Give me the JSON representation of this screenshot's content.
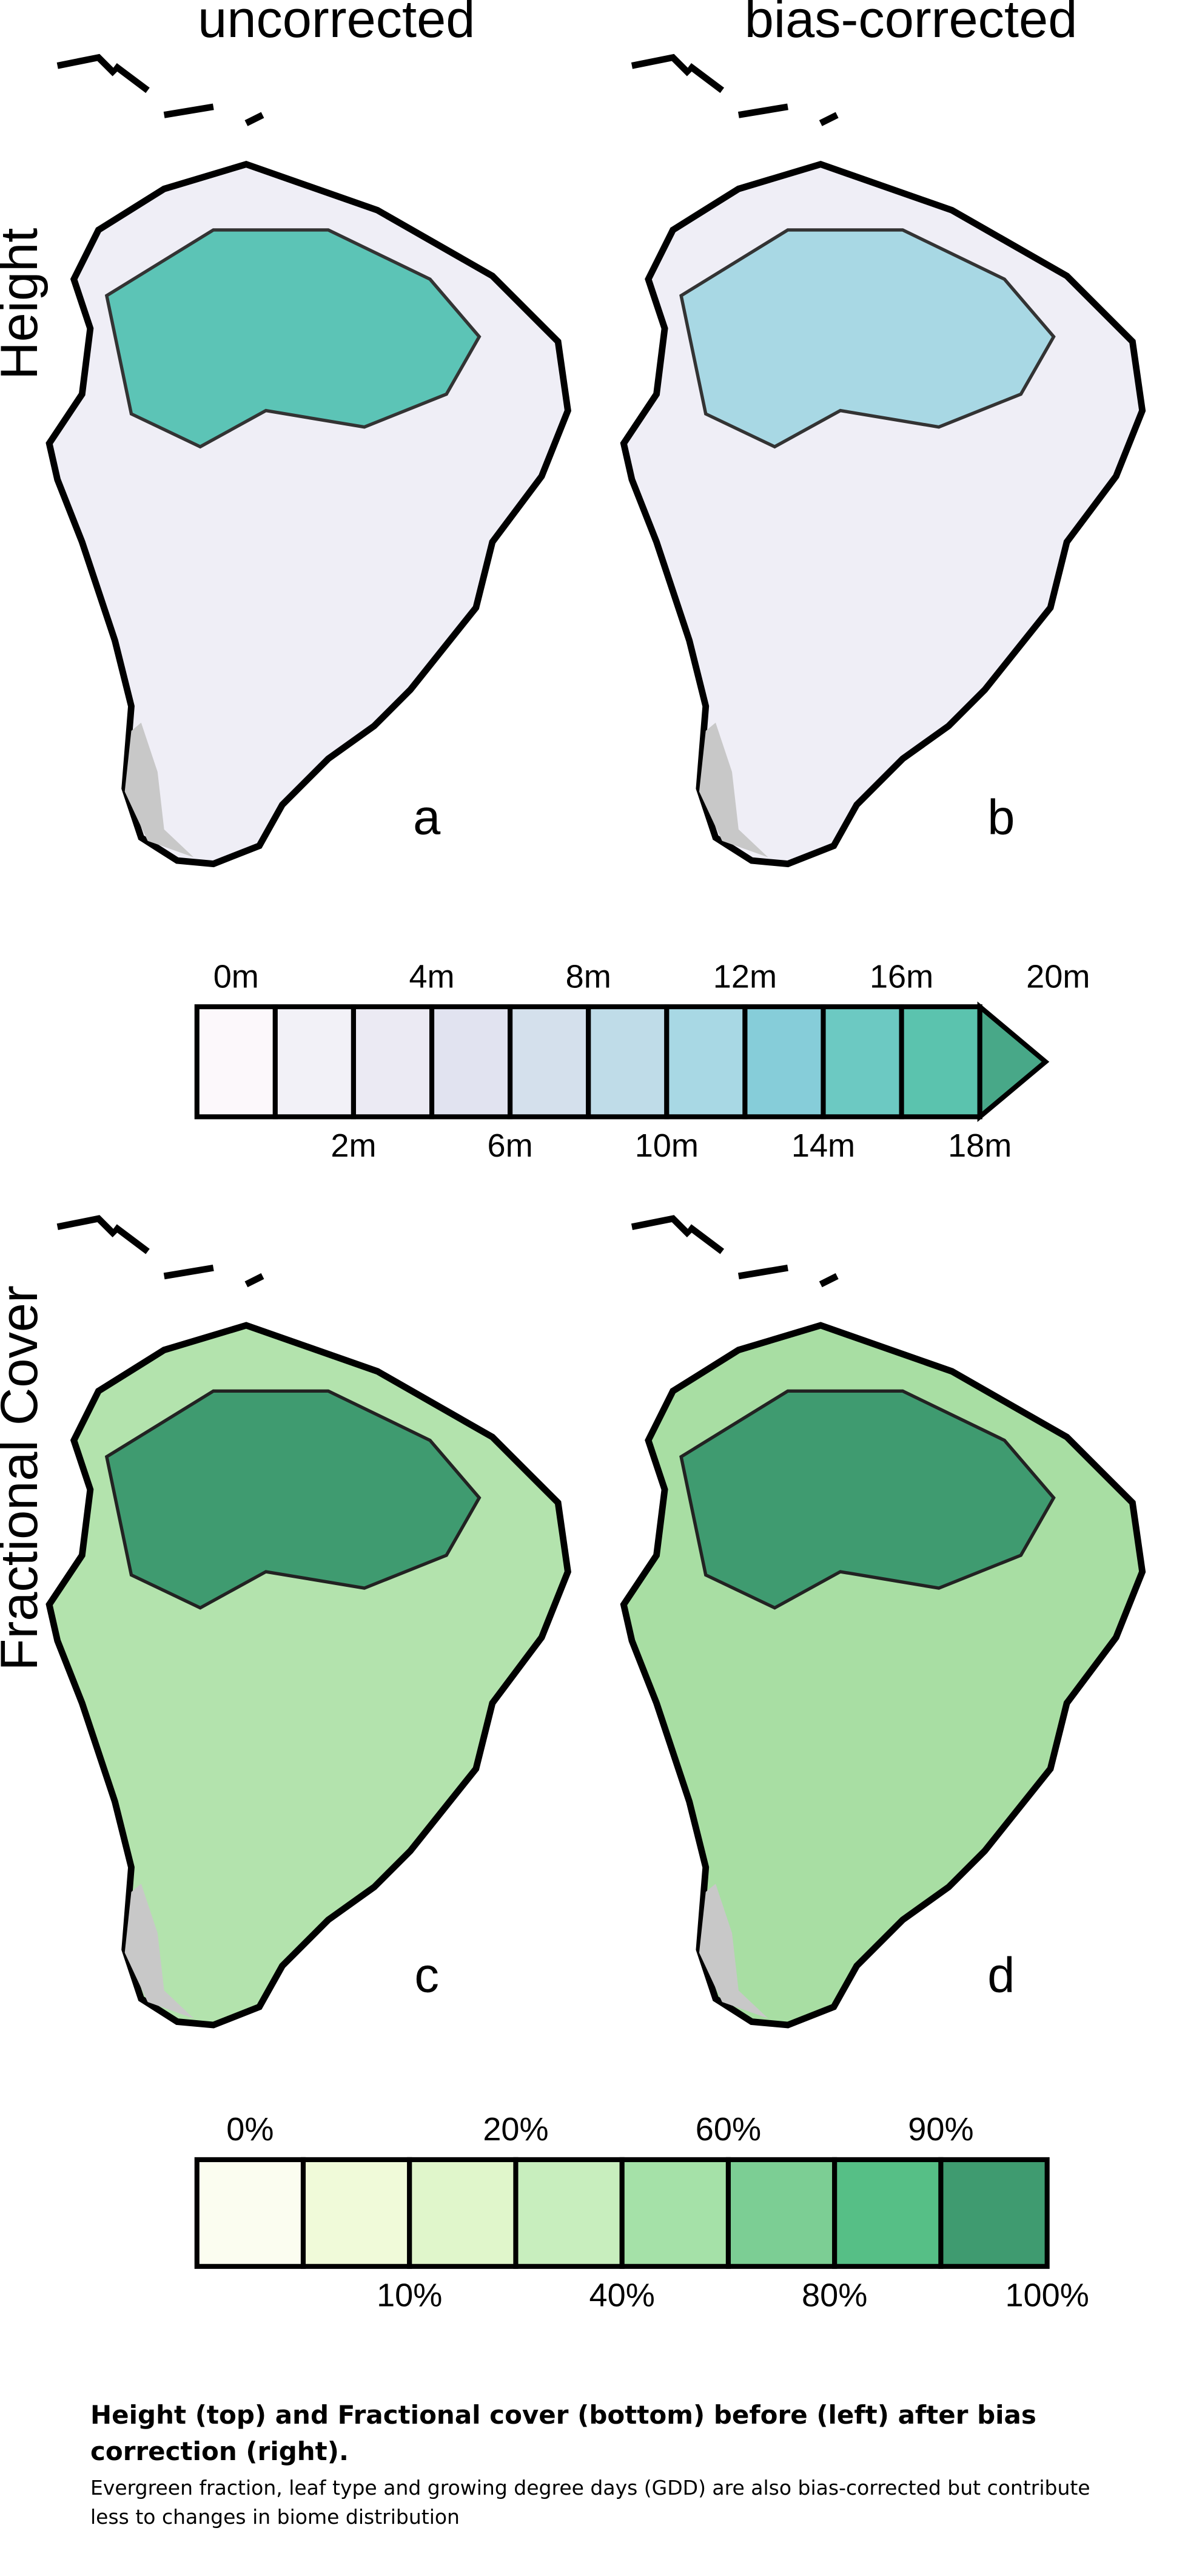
{
  "column_titles": [
    "uncorrected",
    "bias-corrected"
  ],
  "row_labels": [
    "Height",
    "Fractional Cover"
  ],
  "panels": [
    "a",
    "b",
    "c",
    "d"
  ],
  "height_colorbar": {
    "colors": [
      "#fcf8fb",
      "#f2f1f7",
      "#ebeaf3",
      "#e1e3f0",
      "#d4e0ec",
      "#bfdce8",
      "#a8d8e4",
      "#86cdd9",
      "#6cc9c2",
      "#5bc3ae",
      "#48a888"
    ],
    "labels_top": [
      "0m",
      "4m",
      "8m",
      "12m",
      "16m",
      "20m"
    ],
    "labels_bottom": [
      "2m",
      "6m",
      "10m",
      "14m",
      "18m"
    ]
  },
  "cover_colorbar": {
    "colors": [
      "#fbfdf0",
      "#f0fad9",
      "#e0f6cb",
      "#c8eebe",
      "#a5e1a8",
      "#7cce94",
      "#56bf86",
      "#3f9b70"
    ],
    "labels_top": [
      "0%",
      "20%",
      "60%",
      "90%"
    ],
    "labels_bottom": [
      "10%",
      "40%",
      "80%",
      "100%"
    ]
  },
  "caption": {
    "title": "Height (top) and Fractional cover (bottom) before (left) after bias correction (right).",
    "text": "Evergreen fraction, leaf type and growing degree days (GDD) are also bias-corrected but contribute less to changes in biome distribution"
  }
}
